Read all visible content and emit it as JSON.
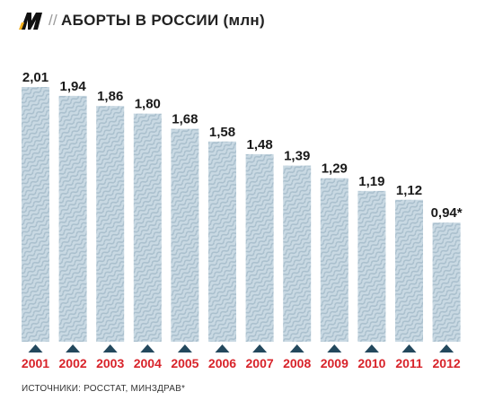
{
  "header": {
    "logo_icon": "m-logo-icon",
    "slashes": "//",
    "title": "АБОРТЫ В РОССИИ (млн)"
  },
  "footer": {
    "source": "ИСТОЧНИКИ: РОССТАТ, МИНЗДРАВ*"
  },
  "colors": {
    "bar_fill": "#c9d9e3",
    "bar_stripe": "#a9bfcd",
    "triangle": "#23485d",
    "year_label": "#d8232a",
    "value_label": "#1a1a1a"
  },
  "chart_data": {
    "type": "bar",
    "title": "АБОРТЫ В РОССИИ (млн)",
    "xlabel": "",
    "ylabel": "",
    "categories": [
      "2001",
      "2002",
      "2003",
      "2004",
      "2005",
      "2006",
      "2007",
      "2008",
      "2009",
      "2010",
      "2011",
      "2012"
    ],
    "values": [
      2.01,
      1.94,
      1.86,
      1.8,
      1.68,
      1.58,
      1.48,
      1.39,
      1.29,
      1.19,
      1.12,
      0.94
    ],
    "value_labels": [
      "2,01",
      "1,94",
      "1,86",
      "1,80",
      "1,68",
      "1,58",
      "1,48",
      "1,39",
      "1,29",
      "1,19",
      "1,12",
      "0,94*"
    ],
    "ylim": [
      0,
      2.01
    ],
    "grid": false,
    "legend": "none"
  }
}
